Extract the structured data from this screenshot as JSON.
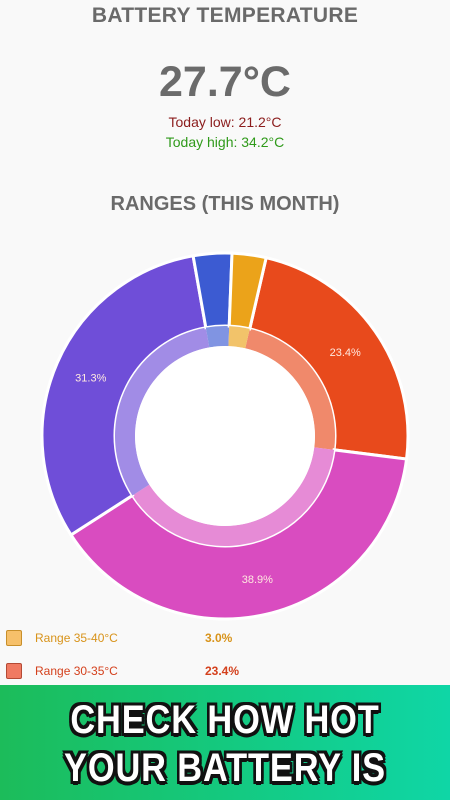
{
  "header": {
    "title": "BATTERY TEMPERATURE",
    "current_temp": "27.7°C",
    "today_low": "Today low: 21.2°C",
    "today_high": "Today high: 34.2°C"
  },
  "ranges": {
    "title": "RANGES (THIS MONTH)"
  },
  "chart_data": {
    "type": "pie",
    "donut": true,
    "title": "RANGES (THIS MONTH)",
    "slices": [
      {
        "label": "Range 30-35°C",
        "value": 23.4,
        "color": "#e84a1c",
        "display": "23.4%"
      },
      {
        "label": "",
        "value": 38.9,
        "color": "#d94cc0",
        "display": "38.9%"
      },
      {
        "label": "",
        "value": 31.3,
        "color": "#6f4ed8",
        "display": "31.3%"
      },
      {
        "label": "",
        "value": 3.4,
        "color": "#3c5bd2",
        "display": ""
      },
      {
        "label": "Range 35-40°C",
        "value": 3.0,
        "color": "#eba31a",
        "display": ""
      }
    ]
  },
  "legend": [
    {
      "label": "Range 35-40°C",
      "value": "3.0%",
      "color": "#f6c06a",
      "border": "#c88f2a",
      "text_color": "#d8931a"
    },
    {
      "label": "Range 30-35°C",
      "value": "23.4%",
      "color": "#f07a62",
      "border": "#b44a35",
      "text_color": "#d4401c"
    }
  ],
  "banner": {
    "line1": "CHECK HOW HOT",
    "line2": "YOUR BATTERY IS"
  }
}
